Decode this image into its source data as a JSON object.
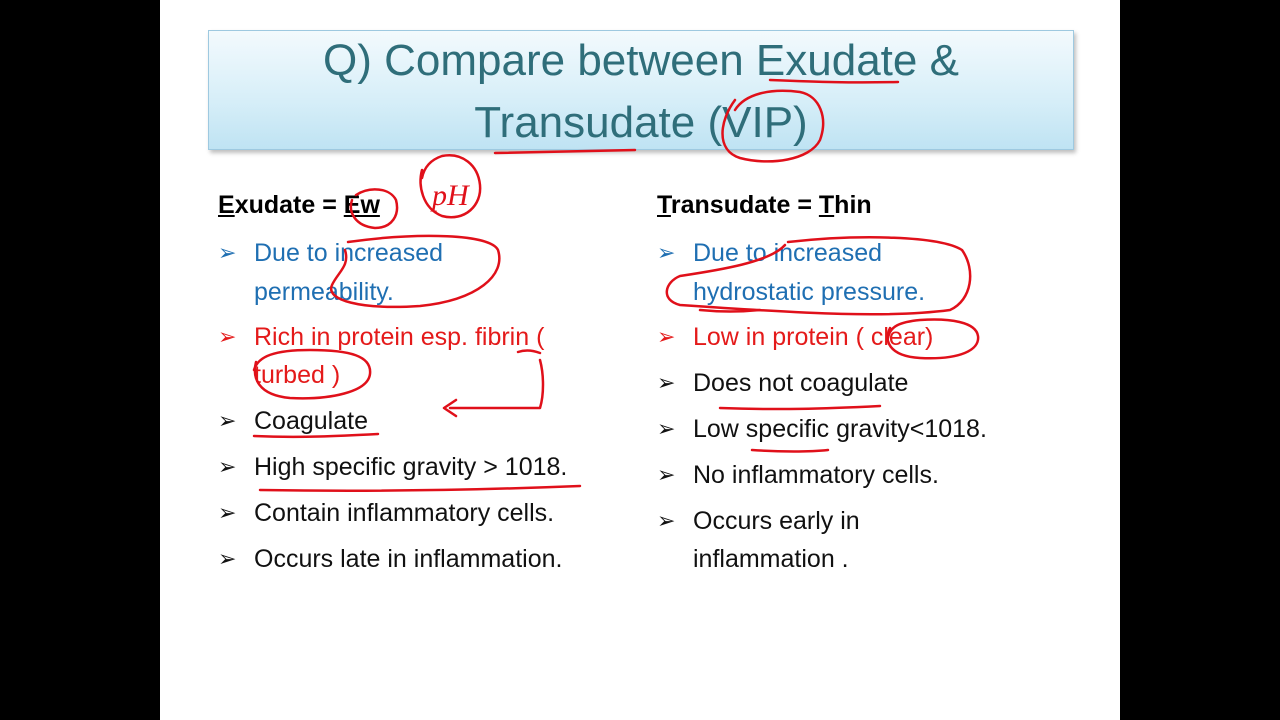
{
  "title": {
    "line1": "Q) Compare between Exudate &",
    "line2": "Transudate (VIP)"
  },
  "left": {
    "heading_first_letter": "E",
    "heading_rest": "xudate = ",
    "heading_key": "Ew",
    "items": [
      {
        "line1": "Due to increased",
        "line2": "permeability."
      },
      {
        "line1": "Rich in protein esp. fibrin (",
        "line2": "turbed )"
      },
      {
        "line1": "Coagulate"
      },
      {
        "line1": "High specific gravity > 1018."
      },
      {
        "line1": "Contain inflammatory cells."
      },
      {
        "line1": "Occurs late in inflammation."
      }
    ]
  },
  "right": {
    "heading_first_letter": "T",
    "heading_rest": "ransudate = ",
    "heading_key_first": "T",
    "heading_key_rest": "hin",
    "items": [
      {
        "line1": "Due to increased",
        "line2": "hydrostatic pressure."
      },
      {
        "line1": "Low in protein ( clear)"
      },
      {
        "line1": "Does not coagulate"
      },
      {
        "line1": "Low specific gravity<1018."
      },
      {
        "line1": "No inflammatory cells."
      },
      {
        "line1": "Occurs early in",
        "line2": "inflammation ."
      }
    ]
  },
  "annotation_text": "pH",
  "colors": {
    "title": "#2f6e7a",
    "blue_item": "#1f6fb2",
    "red_item": "#e41a1a",
    "ink": "#e0101a"
  },
  "bullet_glyph": "➢"
}
